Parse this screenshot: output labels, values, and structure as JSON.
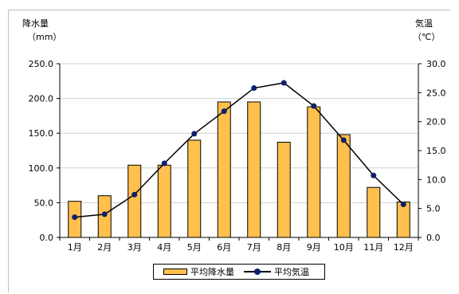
{
  "chart_data": {
    "type": "bar+line",
    "categories": [
      "1月",
      "2月",
      "3月",
      "4月",
      "5月",
      "6月",
      "7月",
      "8月",
      "9月",
      "10月",
      "11月",
      "12月"
    ],
    "left_axis": {
      "title": "降水量",
      "unit": "（mm）",
      "ylim": [
        0,
        250
      ],
      "ticks": [
        "0.0",
        "50.0",
        "100.0",
        "150.0",
        "200.0",
        "250.0"
      ]
    },
    "right_axis": {
      "title": "気温",
      "unit": "（℃）",
      "ylim": [
        0,
        30
      ],
      "ticks": [
        "0.0",
        "5.0",
        "10.0",
        "15.0",
        "20.0",
        "25.0",
        "30.0"
      ]
    },
    "series": [
      {
        "name": "平均降水量",
        "kind": "bar",
        "axis": "left",
        "color": "#ffc04d",
        "values": [
          52,
          60,
          104,
          104,
          140,
          195,
          195,
          137,
          188,
          148,
          72,
          51
        ]
      },
      {
        "name": "平均気温",
        "kind": "line",
        "axis": "right",
        "color": "#0f1f6e",
        "values": [
          3.5,
          4.0,
          7.4,
          12.8,
          17.9,
          21.8,
          25.8,
          26.7,
          22.7,
          16.8,
          10.7,
          5.7
        ]
      }
    ],
    "grid": true,
    "legend": "bottom"
  }
}
